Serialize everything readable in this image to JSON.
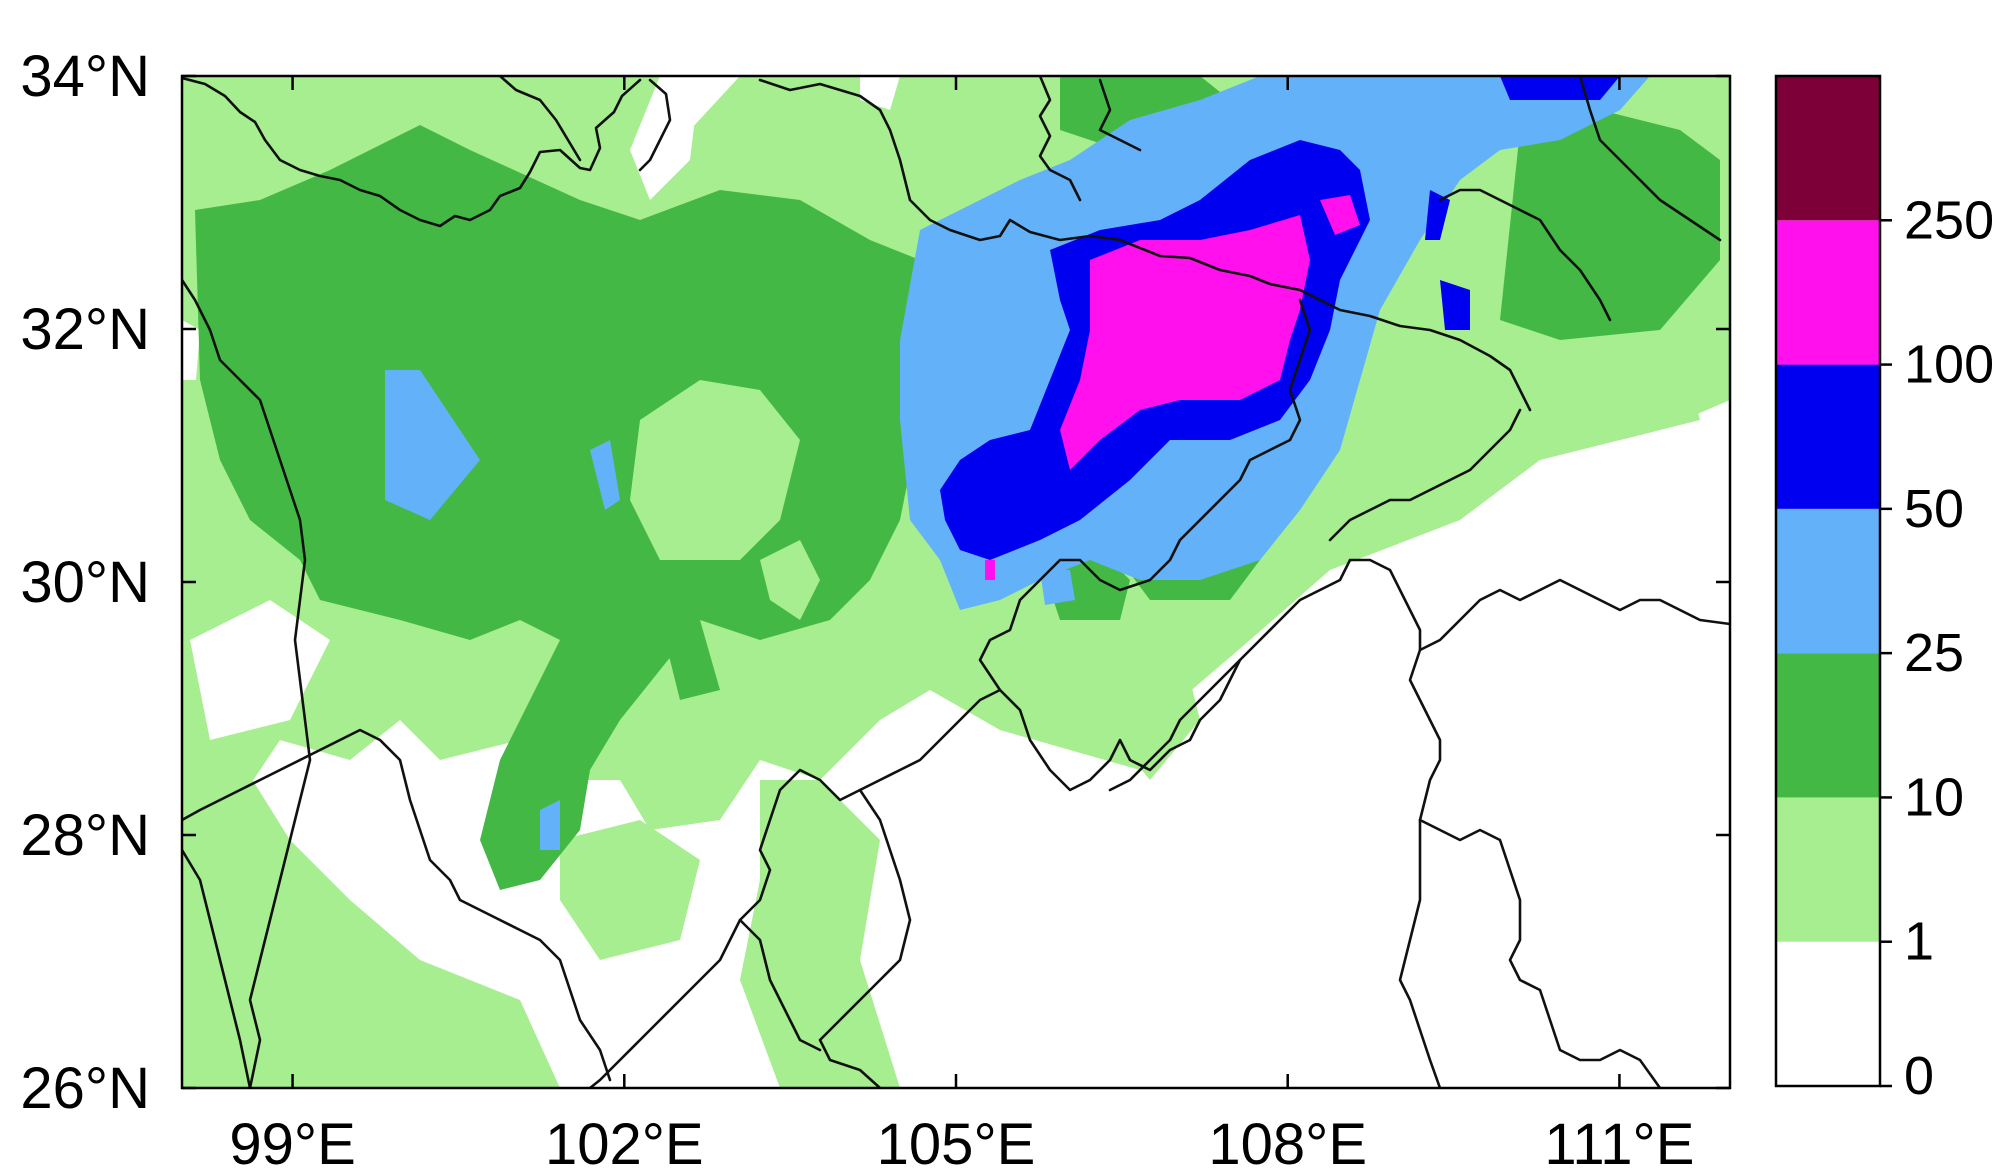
{
  "map": {
    "lon_range": [
      98,
      112
    ],
    "lat_range": [
      26,
      34
    ],
    "lat_ticks": [
      {
        "value": 34,
        "label": "34°N"
      },
      {
        "value": 32,
        "label": "32°N"
      },
      {
        "value": 30,
        "label": "30°N"
      },
      {
        "value": 28,
        "label": "28°N"
      },
      {
        "value": 26,
        "label": "26°N"
      }
    ],
    "lon_ticks": [
      {
        "value": 99,
        "label": "99°E"
      },
      {
        "value": 102,
        "label": "102°E"
      },
      {
        "value": 105,
        "label": "105°E"
      },
      {
        "value": 108,
        "label": "108°E"
      },
      {
        "value": 111,
        "label": "111°E"
      }
    ]
  },
  "colorbar": {
    "levels": [
      "0",
      "1",
      "10",
      "25",
      "50",
      "100",
      "250"
    ],
    "colors": [
      "#ffffff",
      "#a6ee8f",
      "#44b844",
      "#62b1f9",
      "#0000f0",
      "#ff10ec",
      "#7d0038"
    ]
  },
  "colors": {
    "background": "#ffffff",
    "frame": "#000000",
    "boundary": "#111111"
  }
}
